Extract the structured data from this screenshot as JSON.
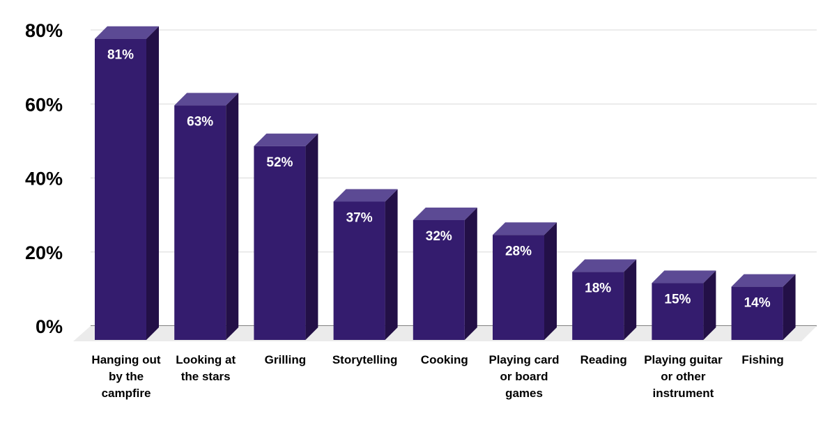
{
  "chart_data": {
    "type": "bar",
    "style": "3d-column",
    "categories": [
      [
        "Hanging out",
        "by the",
        "campfire"
      ],
      [
        "Looking at",
        "the stars"
      ],
      [
        "Grilling"
      ],
      [
        "Storytelling"
      ],
      [
        "Cooking"
      ],
      [
        "Playing card",
        "or board",
        "games"
      ],
      [
        "Reading"
      ],
      [
        "Playing guitar",
        "or other",
        "instrument"
      ],
      [
        "Fishing"
      ]
    ],
    "values": [
      81,
      63,
      52,
      37,
      32,
      28,
      18,
      15,
      14
    ],
    "data_labels": [
      "81%",
      "63%",
      "52%",
      "37%",
      "32%",
      "28%",
      "18%",
      "15%",
      "14%"
    ],
    "yticks": [
      0,
      20,
      40,
      60,
      80
    ],
    "ytick_labels": [
      "0%",
      "20%",
      "40%",
      "60%",
      "80%"
    ],
    "ylim": [
      0,
      80
    ],
    "grid": true,
    "legend": "none",
    "colors": {
      "bar_front": "#341c6e",
      "bar_top": "#5c4a94",
      "bar_side": "#231047",
      "floor": "#ebebeb",
      "grid": "#d8d8d8",
      "axis": "#000000"
    }
  }
}
